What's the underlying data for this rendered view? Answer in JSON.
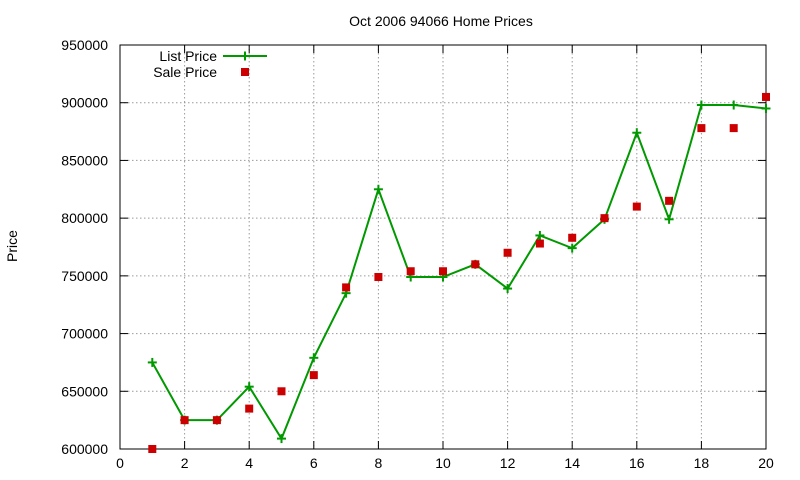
{
  "chart_data": {
    "type": "line",
    "title": "Oct 2006 94066 Home Prices",
    "xlabel": "",
    "ylabel": "Price",
    "xlim": [
      0,
      20
    ],
    "ylim": [
      600000,
      950000
    ],
    "x_ticks": [
      0,
      2,
      4,
      6,
      8,
      10,
      12,
      14,
      16,
      18,
      20
    ],
    "y_ticks": [
      600000,
      650000,
      700000,
      750000,
      800000,
      850000,
      900000,
      950000
    ],
    "x_tick_labels": [
      "0",
      "2",
      "4",
      "6",
      "8",
      "10",
      "12",
      "14",
      "16",
      "18",
      "20"
    ],
    "y_tick_labels": [
      "600000",
      "650000",
      "700000",
      "750000",
      "800000",
      "850000",
      "900000",
      "950000"
    ],
    "grid": true,
    "legend_position": "top-left",
    "series": [
      {
        "name": "List Price",
        "style": "line-with-plus-markers",
        "color": "#009900",
        "x": [
          1,
          2,
          3,
          4,
          5,
          6,
          7,
          8,
          9,
          10,
          11,
          12,
          13,
          14,
          15,
          16,
          17,
          18,
          19,
          20
        ],
        "y": [
          675000,
          625000,
          625000,
          654000,
          609000,
          679000,
          735000,
          825000,
          749000,
          749000,
          760000,
          739000,
          785000,
          774000,
          799000,
          874000,
          799000,
          898000,
          898000,
          895000
        ]
      },
      {
        "name": "Sale Price",
        "style": "square-markers",
        "color": "#cc0000",
        "x": [
          1,
          2,
          3,
          4,
          5,
          6,
          7,
          8,
          9,
          10,
          11,
          12,
          13,
          14,
          15,
          16,
          17,
          18,
          19,
          20
        ],
        "y": [
          600000,
          625000,
          625000,
          635000,
          650000,
          664000,
          740000,
          749000,
          754000,
          754000,
          760000,
          770000,
          778000,
          783000,
          800000,
          810000,
          815000,
          878000,
          878000,
          905000
        ]
      }
    ]
  }
}
